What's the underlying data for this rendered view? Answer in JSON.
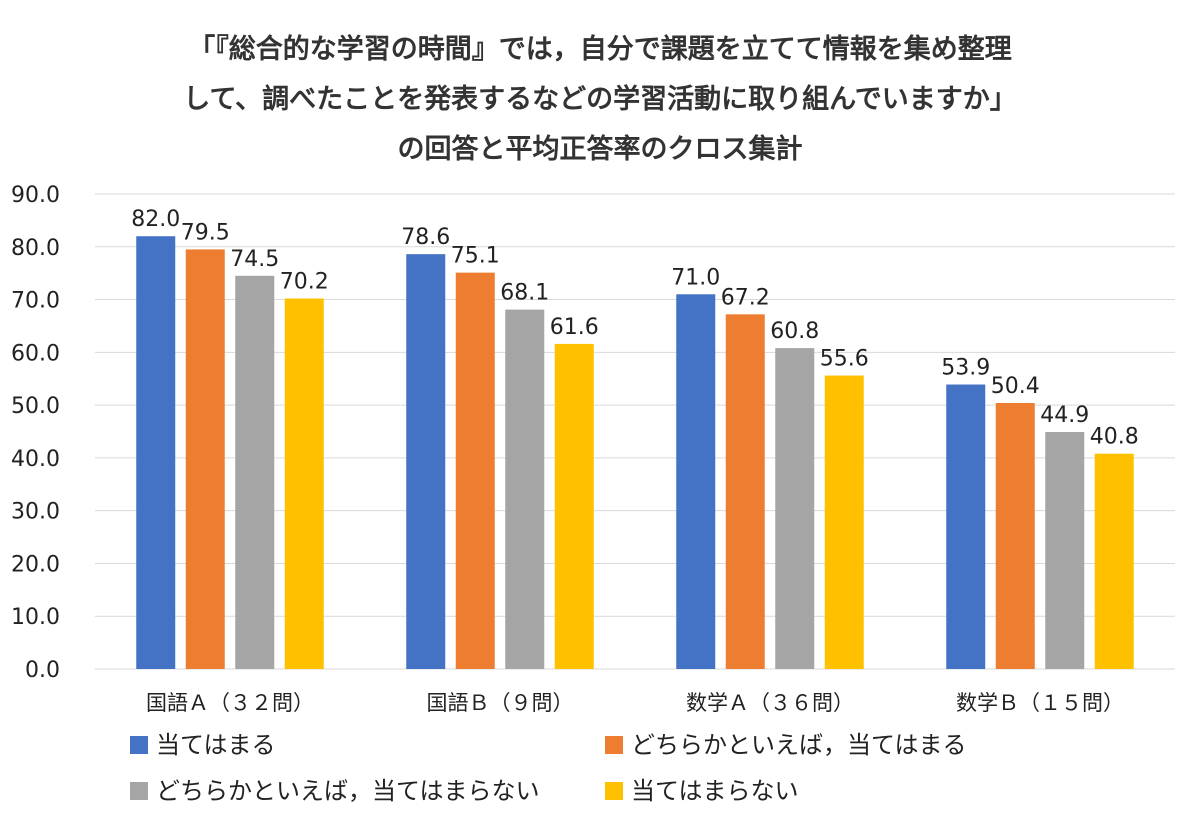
{
  "chart_data": {
    "type": "bar",
    "title": [
      "「『総合的な学習の時間』では，自分で課題を立てて情報を集め整理",
      "して、調べたことを発表するなどの学習活動に取り組んでいますか」",
      "の回答と平均正答率のクロス集計"
    ],
    "xlabel": "",
    "ylabel": "",
    "ylim": [
      0,
      90
    ],
    "yticks": [
      "0.0",
      "10.0",
      "20.0",
      "30.0",
      "40.0",
      "50.0",
      "60.0",
      "70.0",
      "80.0",
      "90.0"
    ],
    "grid": true,
    "legend_position": "bottom",
    "categories": [
      "国語Ａ（３２問）",
      "国語Ｂ（９問）",
      "数学Ａ（３６問）",
      "数学Ｂ（１５問）"
    ],
    "series": [
      {
        "name": "当てはまる",
        "color": "#4472c4",
        "values": [
          82.0,
          78.6,
          71.0,
          53.9
        ]
      },
      {
        "name": "どちらかといえば，当てはまる",
        "color": "#ed7d31",
        "values": [
          79.5,
          75.1,
          67.2,
          50.4
        ]
      },
      {
        "name": "どちらかといえば，当てはまらない",
        "color": "#a5a5a5",
        "values": [
          74.5,
          68.1,
          60.8,
          44.9
        ]
      },
      {
        "name": "当てはまらない",
        "color": "#ffc000",
        "values": [
          70.2,
          61.6,
          55.6,
          40.8
        ]
      }
    ]
  }
}
